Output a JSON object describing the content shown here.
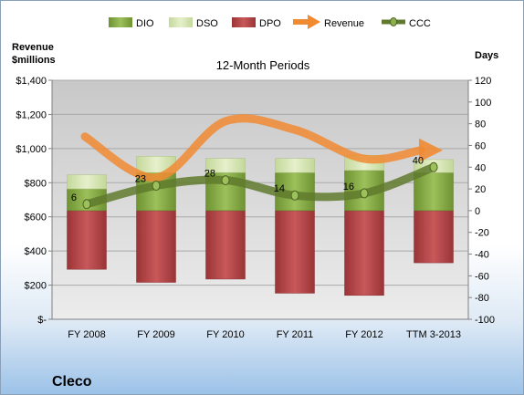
{
  "company": "Cleco",
  "chart_data": {
    "type": "bar",
    "title": "12-Month Periods",
    "left_axis_label": [
      "Revenue",
      "$millions"
    ],
    "right_axis_label": "Days",
    "categories": [
      "FY 2008",
      "FY 2009",
      "FY 2010",
      "FY 2011",
      "FY 2012",
      "TTM 3-2013"
    ],
    "left_ticks": [
      "$-",
      "$200",
      "$400",
      "$600",
      "$800",
      "$1,000",
      "$1,200",
      "$1,400"
    ],
    "right_ticks": [
      "-100",
      "-80",
      "-60",
      "-40",
      "-20",
      "0",
      "20",
      "40",
      "60",
      "80",
      "100",
      "120"
    ],
    "left_ylim": [
      0,
      1400
    ],
    "right_ylim": [
      -100,
      120
    ],
    "grid": true,
    "legend_position": "top",
    "legend": [
      "DIO",
      "DSO",
      "DPO",
      "Revenue",
      "CCC"
    ],
    "series": [
      {
        "name": "DIO",
        "axis": "days",
        "stacked_positive": true,
        "values": [
          20,
          35,
          35,
          35,
          37,
          35
        ]
      },
      {
        "name": "DSO",
        "axis": "days",
        "stacked_positive": true,
        "values": [
          13,
          15,
          13,
          13,
          14,
          12
        ]
      },
      {
        "name": "DPO",
        "axis": "days",
        "stacked_negative": true,
        "values": [
          -54,
          -66,
          -63,
          -76,
          -78,
          -48
        ]
      },
      {
        "name": "Revenue",
        "axis": "money",
        "type": "line",
        "values": [
          1070,
          830,
          1160,
          1110,
          940,
          990
        ]
      },
      {
        "name": "CCC",
        "axis": "days",
        "type": "line",
        "values": [
          6,
          23,
          28,
          14,
          16,
          40
        ]
      }
    ],
    "data_labels": [
      "6",
      "23",
      "28",
      "14",
      "16",
      "40"
    ]
  },
  "colors": {
    "DIO": "#8db04f",
    "DSO": "#d8e7b3",
    "DPO": "#b8474a",
    "Revenue": "#f08a33",
    "CCC": "#5f7a2d",
    "grid": "#a9a9a9",
    "plot_bg": "#d0d0d0"
  }
}
